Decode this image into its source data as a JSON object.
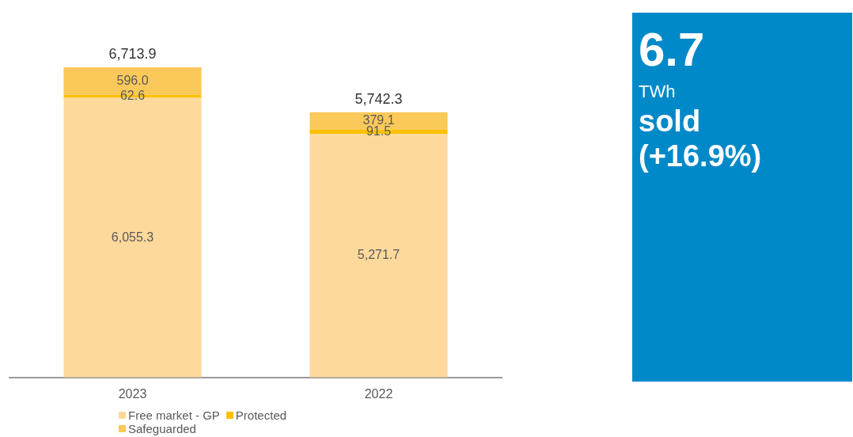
{
  "chart_data": [
    {
      "type": "bar",
      "stacked": true,
      "categories": [
        "2023",
        "2022"
      ],
      "series": [
        {
          "name": "Free market - GP",
          "color": "#fdd99b",
          "values": [
            6055.3,
            5271.7
          ],
          "value_labels": [
            "6,055.3",
            "5,271.7"
          ]
        },
        {
          "name": "Protected",
          "color": "#ffc000",
          "values": [
            62.6,
            91.5
          ],
          "value_labels": [
            "62.6",
            "91.5"
          ]
        },
        {
          "name": "Safeguarded",
          "color": "#fbc95a",
          "values": [
            596.0,
            379.1
          ],
          "value_labels": [
            "596.0",
            "379.1"
          ]
        }
      ],
      "totals": [
        "6,713.9",
        "5,742.3"
      ],
      "legend": "bottom",
      "grid": false
    },
    {
      "type": "other",
      "annotations": [
        "6.7",
        "TWh",
        "sold",
        "(+16.9%)"
      ]
    }
  ]
}
